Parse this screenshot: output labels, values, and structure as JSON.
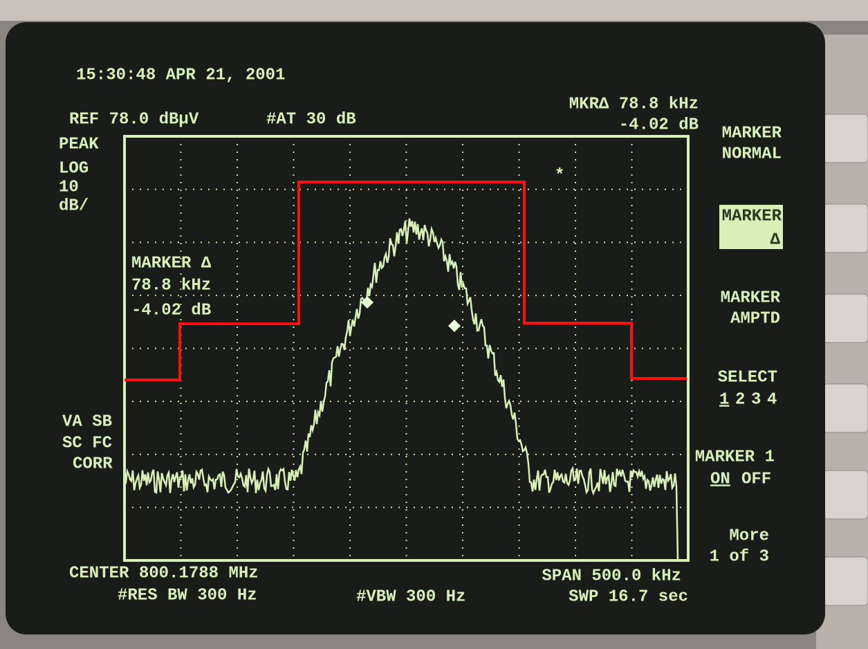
{
  "header": {
    "timestamp": "15:30:48 APR 21, 2001",
    "reference": "REF 78.0 dBµV",
    "attenuation": "#AT 30 dB",
    "marker_delta": "MKR∆ 78.8 kHz",
    "marker_delta_amplitude": "-4.02 dB"
  },
  "left_labels": {
    "detector": "PEAK",
    "scale": [
      "LOG",
      "10",
      "dB/"
    ],
    "flags": [
      "VA SB",
      "SC FC",
      "CORR"
    ]
  },
  "marker_box": [
    "MARKER ∆",
    "78.8 kHz",
    "-4.02 dB"
  ],
  "softkeys": {
    "marker_normal": [
      "MARKER",
      "NORMAL"
    ],
    "marker_delta": [
      "MARKER",
      "∆"
    ],
    "marker_amptd": [
      "MARKER",
      "AMPTD"
    ],
    "select_title": "SELECT",
    "select_options": [
      "1",
      "2",
      "3",
      "4"
    ],
    "marker1_title": "MARKER 1",
    "marker1_options": [
      "ON",
      "OFF"
    ],
    "more": [
      "More",
      "1 of 3"
    ]
  },
  "footer": {
    "center": "CENTER 800.1788 MHz",
    "res_bw": "#RES BW 300 Hz",
    "vbw": "#VBW 300 Hz",
    "span": "SPAN 500.0 kHz",
    "sweep": "SWP 16.7 sec"
  }
}
